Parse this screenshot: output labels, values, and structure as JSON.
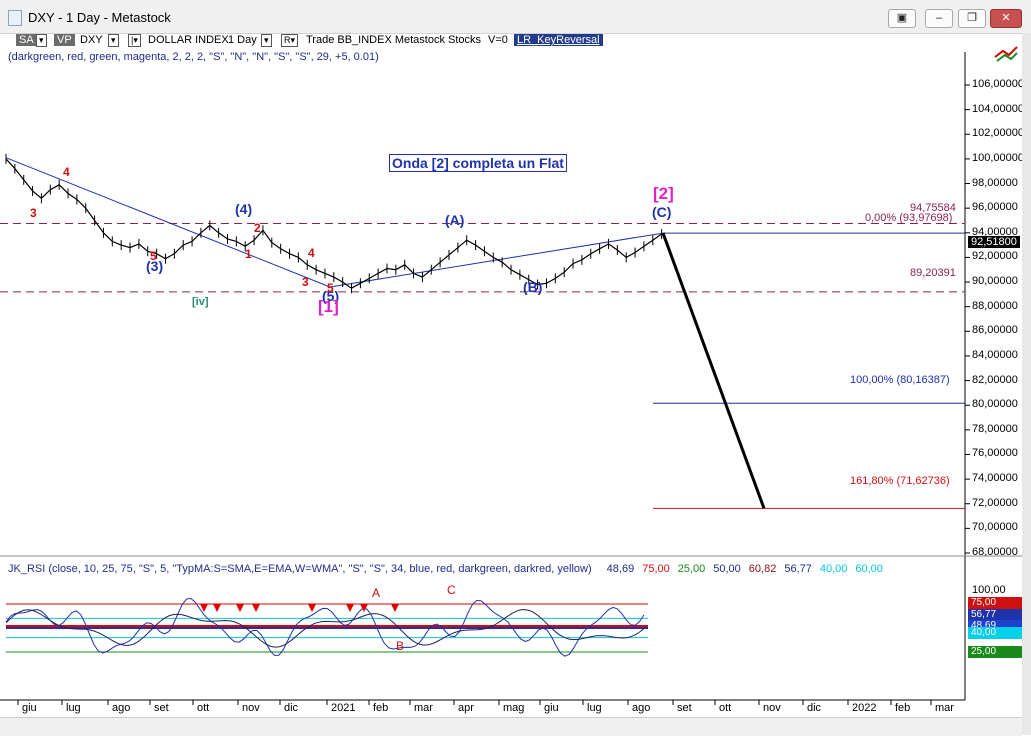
{
  "window": {
    "title": "DXY - 1 Day - Metastock",
    "buttons": [
      "▣",
      "–",
      "❐",
      "✕"
    ]
  },
  "toolbar": {
    "chip1": "SA",
    "chip2": "VP",
    "symbol": "DXY",
    "name": "DOLLAR INDEX",
    "period": "1 Day",
    "r_btn": "R",
    "trade_text": "Trade  BB_INDEX  Metastock  Stocks",
    "v_text": "V=0",
    "indicator": "LR_KeyReversal",
    "params": "(darkgreen, red, green, magenta, 2, 2, 2, \"S\", \"N\", \"N\", \"S\", \"S\", 29, +5, 0.01)"
  },
  "chart_title_box": "Onda [2] completa un Flat",
  "price_box": "92,51800",
  "fib_levels": {
    "high_label": "94,75584",
    "zero_label": "0,00% (93,97698)",
    "low_label": "89,20391",
    "hundred_label": "100,00% (80,16387)",
    "ext_label": "161,80% (71,62736)"
  },
  "wave_labels": {
    "w3_big": "(3)",
    "w4_big": "(4)",
    "w5_big": "(5)",
    "wA": "(A)",
    "wB": "(B)",
    "wC": "(C)",
    "w1_mag": "[1]",
    "w2_mag": "[2]",
    "iv": "[iv]",
    "r3a": "3",
    "r4a": "4",
    "r5a": "5",
    "r1b": "1",
    "r2b": "2",
    "r3b": "3",
    "r4b": "4",
    "r5b": "5"
  },
  "rsi": {
    "legend": "JK_RSI    (close,  10,  25,  75,  \"S\",  5,  \"TypMA:S=SMA,E=EMA,W=WMA\",  \"S\",  \"S\",  34,  blue,  red,  darkgreen,  darkred,  yellow)",
    "values": [
      {
        "text": "48,69",
        "color": "#1e2d8c"
      },
      {
        "text": "75,00",
        "color": "#d01010"
      },
      {
        "text": "25,00",
        "color": "#1a8a1a"
      },
      {
        "text": "50,00",
        "color": "#1e2d8c"
      },
      {
        "text": "60,82",
        "color": "#8b1010"
      },
      {
        "text": "56,77",
        "color": "#1e2d8c"
      },
      {
        "text": "40,00",
        "color": "#00c8e0"
      },
      {
        "text": "60,00",
        "color": "#00c8e0"
      }
    ],
    "annot_A": "A",
    "annot_B": "B",
    "annot_C": "C",
    "axis_label": "100,00",
    "boxes": [
      {
        "text": "75,00",
        "color": "#d01010"
      },
      {
        "text": "56,77",
        "color": "#1e32aa"
      },
      {
        "text": "48,69",
        "color": "#2040d0"
      },
      {
        "text": "40,00",
        "color": "#00d0e8"
      },
      {
        "text": "25,00",
        "color": "#1a8a1a"
      }
    ]
  },
  "colors": {
    "price": "#000000",
    "trendline": "#1e32aa",
    "fib_dash": "#8b2252",
    "ext_line": "#d01010",
    "rsi_blue": "#1e32aa",
    "rsi_red": "#e00000",
    "rsi_cyan": "#00c8e0",
    "rsi_green": "#1a8a1a"
  },
  "chart_data": {
    "type": "line",
    "title": "",
    "xlabel": "",
    "ylabel": "",
    "ylim": [
      68,
      108
    ],
    "y_ticks": [
      "106,00000",
      "104,00000",
      "102,00000",
      "100,00000",
      "98,00000",
      "96,00000",
      "94,00000",
      "92,00000",
      "90,00000",
      "88,00000",
      "86,00000",
      "84,00000",
      "82,00000",
      "80,00000",
      "78,00000",
      "76,00000",
      "74,00000",
      "72,00000",
      "70,00000",
      "68,00000"
    ],
    "x_ticks": [
      "giu",
      "lug",
      "ago",
      "set",
      "ott",
      "nov",
      "dic",
      "2021",
      "feb",
      "mar",
      "apr",
      "mag",
      "giu",
      "lug",
      "ago",
      "set",
      "ott",
      "nov",
      "dic",
      "2022",
      "feb",
      "mar"
    ],
    "grid": false,
    "series": [
      {
        "values": [
          [
            0,
            100.0
          ],
          [
            2,
            99.2
          ],
          [
            4,
            98.3
          ],
          [
            6,
            97.4
          ],
          [
            8,
            96.8
          ],
          [
            10,
            97.5
          ],
          [
            12,
            97.9
          ],
          [
            14,
            97.2
          ],
          [
            16,
            96.7
          ],
          [
            18,
            96.0
          ],
          [
            20,
            95.0
          ],
          [
            22,
            94.0
          ],
          [
            24,
            93.3
          ],
          [
            26,
            93.0
          ],
          [
            28,
            92.8
          ],
          [
            30,
            93.1
          ],
          [
            32,
            92.5
          ],
          [
            34,
            92.3
          ],
          [
            36,
            91.9
          ],
          [
            38,
            92.3
          ],
          [
            40,
            93.0
          ],
          [
            42,
            93.3
          ],
          [
            44,
            94.0
          ],
          [
            46,
            94.6
          ],
          [
            48,
            94.0
          ],
          [
            50,
            93.5
          ],
          [
            52,
            93.3
          ],
          [
            54,
            92.9
          ],
          [
            56,
            93.4
          ],
          [
            58,
            94.2
          ],
          [
            60,
            93.2
          ],
          [
            62,
            92.7
          ],
          [
            64,
            92.3
          ],
          [
            66,
            92.0
          ],
          [
            68,
            91.4
          ],
          [
            70,
            91.0
          ],
          [
            72,
            90.7
          ],
          [
            74,
            90.4
          ],
          [
            76,
            90.0
          ],
          [
            78,
            89.5
          ],
          [
            80,
            89.9
          ],
          [
            82,
            90.3
          ],
          [
            84,
            90.7
          ],
          [
            86,
            91.1
          ],
          [
            88,
            91.0
          ],
          [
            90,
            91.4
          ],
          [
            92,
            90.7
          ],
          [
            94,
            90.4
          ],
          [
            96,
            91.0
          ],
          [
            98,
            91.6
          ],
          [
            100,
            92.2
          ],
          [
            102,
            92.8
          ],
          [
            104,
            93.4
          ],
          [
            106,
            93.0
          ],
          [
            108,
            92.5
          ],
          [
            110,
            92.0
          ],
          [
            112,
            91.6
          ],
          [
            114,
            91.0
          ],
          [
            116,
            90.6
          ],
          [
            118,
            90.2
          ],
          [
            120,
            89.8
          ],
          [
            122,
            89.9
          ],
          [
            124,
            90.3
          ],
          [
            126,
            90.8
          ],
          [
            128,
            91.5
          ],
          [
            130,
            91.8
          ],
          [
            132,
            92.3
          ],
          [
            134,
            92.7
          ],
          [
            136,
            93.1
          ],
          [
            138,
            92.6
          ],
          [
            140,
            92.0
          ],
          [
            142,
            92.4
          ],
          [
            144,
            92.9
          ],
          [
            146,
            93.4
          ],
          [
            148,
            93.9
          ]
        ]
      }
    ],
    "fib_lines": [
      94.75584,
      93.97698,
      89.20391,
      80.16387,
      71.62736
    ],
    "projection": [
      [
        93.97698,
        "ago"
      ],
      [
        71.62736,
        "nov"
      ]
    ],
    "rsi_levels": [
      75,
      60,
      50,
      40,
      25
    ]
  }
}
